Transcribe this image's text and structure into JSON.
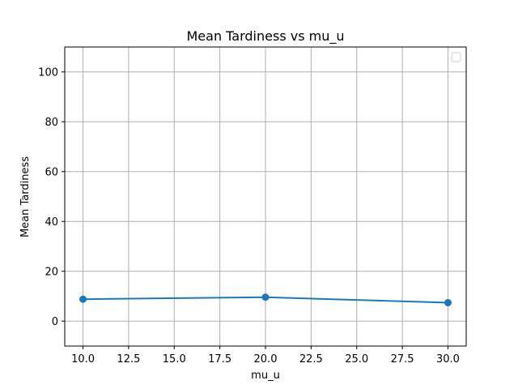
{
  "chart_data": {
    "type": "line",
    "title": "Mean Tardiness vs mu_u",
    "xlabel": "mu_u",
    "ylabel": "Mean Tardiness",
    "x": [
      10,
      20,
      30
    ],
    "series": [
      {
        "values": [
          8.8,
          9.6,
          7.4
        ],
        "color": "#1f77b4",
        "marker": "circle"
      }
    ],
    "xlim": [
      9,
      31
    ],
    "ylim": [
      -10,
      110
    ],
    "xticks": [
      10.0,
      12.5,
      15.0,
      17.5,
      20.0,
      22.5,
      25.0,
      27.5,
      30.0
    ],
    "xtick_labels": [
      "10.0",
      "12.5",
      "15.0",
      "17.5",
      "20.0",
      "22.5",
      "25.0",
      "27.5",
      "30.0"
    ],
    "yticks": [
      0,
      20,
      40,
      60,
      80,
      100
    ],
    "ytick_labels": [
      "0",
      "20",
      "40",
      "60",
      "80",
      "100"
    ],
    "grid": true,
    "legend": {
      "position": "top-right",
      "entries": []
    }
  }
}
